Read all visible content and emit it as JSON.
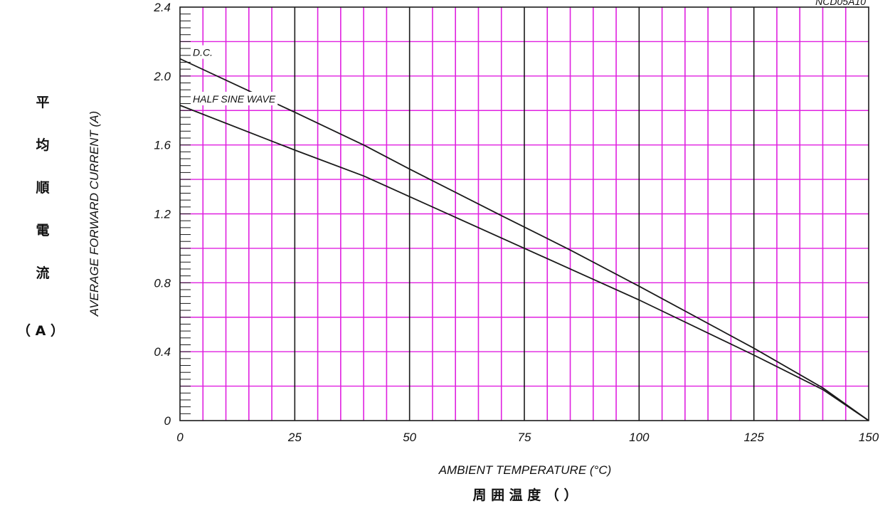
{
  "chart_data": {
    "type": "line",
    "code_label": "NCD05A10",
    "xlabel": "AMBIENT TEMPERATURE (°C)",
    "xlabel_cjk": "周 囲 温 度 （ ）",
    "ylabel": "AVERAGE FORWARD CURRENT (A)",
    "ylabel_cjk": [
      "平",
      "均",
      "順",
      "電",
      "流",
      "（ A ）"
    ],
    "xlim": [
      0,
      150
    ],
    "ylim": [
      0,
      2.4
    ],
    "x_ticks": [
      0,
      25,
      50,
      75,
      100,
      125,
      150
    ],
    "y_ticks": [
      "0",
      "0.4",
      "0.8",
      "1.2",
      "1.6",
      "2.0",
      "2.4"
    ],
    "x_minor_step": 5,
    "y_minor_step": 0.2,
    "y_tiny_step": 0.04,
    "grid": true,
    "colors": {
      "minor_grid": "#e020e0",
      "major_grid": "#1a1a1a",
      "curve": "#1a1a1a"
    },
    "series": [
      {
        "name": "D.C.",
        "x": [
          0,
          25,
          40,
          50,
          70,
          85,
          100,
          125,
          140,
          150
        ],
        "y": [
          2.1,
          1.79,
          1.6,
          1.46,
          1.19,
          0.99,
          0.78,
          0.42,
          0.19,
          0
        ]
      },
      {
        "name": "HALF SINE WAVE",
        "x": [
          0,
          25,
          40,
          50,
          75,
          100,
          125,
          140,
          150
        ],
        "y": [
          1.83,
          1.57,
          1.42,
          1.3,
          1.0,
          0.7,
          0.38,
          0.18,
          0
        ]
      }
    ]
  }
}
